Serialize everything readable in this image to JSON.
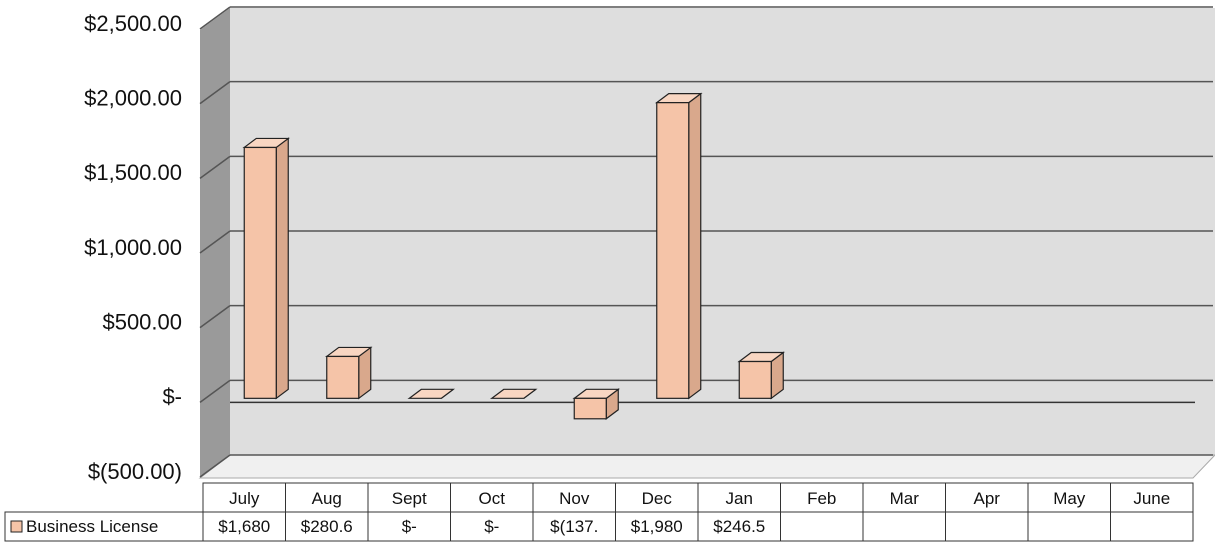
{
  "chart_data": {
    "type": "bar3d",
    "categories": [
      "July",
      "Aug",
      "Sept",
      "Oct",
      "Nov",
      "Dec",
      "Jan",
      "Feb",
      "Mar",
      "Apr",
      "May",
      "June"
    ],
    "series": [
      {
        "name": "Business License",
        "color": "#f5c4a8",
        "values": [
          1680,
          280.6,
          0,
          0,
          -137,
          1980,
          246.5,
          null,
          null,
          null,
          null,
          null
        ],
        "value_labels": [
          "$1,680",
          "$280.6",
          "$-",
          "$-",
          "$(137.",
          "$1,980",
          "$246.5",
          null,
          null,
          null,
          null,
          null
        ]
      }
    ],
    "ylim": [
      -500,
      2500
    ],
    "yticks": [
      {
        "value": -500,
        "label": "$(500.00)"
      },
      {
        "value": 0,
        "label": "$-"
      },
      {
        "value": 500,
        "label": "$500.00"
      },
      {
        "value": 1000,
        "label": "$1,000.00"
      },
      {
        "value": 1500,
        "label": "$1,500.00"
      },
      {
        "value": 2000,
        "label": "$2,000.00"
      },
      {
        "value": 2500,
        "label": "$2,500.00"
      }
    ],
    "grid": true,
    "data_table": true
  }
}
